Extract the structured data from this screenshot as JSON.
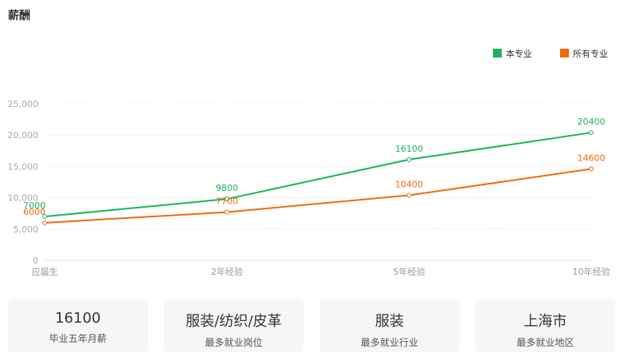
{
  "page_title": "薪酬",
  "chart_data": {
    "type": "line",
    "categories": [
      "应届生",
      "2年经验",
      "5年经验",
      "10年经验"
    ],
    "series": [
      {
        "name": "本专业",
        "values": [
          7000,
          9800,
          16100,
          20400
        ],
        "color": "#1bb35a"
      },
      {
        "name": "所有专业",
        "values": [
          6000,
          7700,
          10400,
          14600
        ],
        "color": "#f06a0e"
      }
    ],
    "ylim": [
      0,
      25000
    ],
    "yticks": [
      0,
      5000,
      10000,
      15000,
      20000,
      25000
    ],
    "ytick_labels": [
      "0",
      "5,000",
      "10,000",
      "15,000",
      "20,000",
      "25,000"
    ],
    "grid": true,
    "legend": "top-right",
    "xlabel": "",
    "ylabel": ""
  },
  "cards": [
    {
      "value": "16100",
      "label": "毕业五年月薪"
    },
    {
      "value": "服装/纺织/皮革",
      "label": "最多就业岗位"
    },
    {
      "value": "服装",
      "label": "最多就业行业"
    },
    {
      "value": "上海市",
      "label": "最多就业地区"
    }
  ]
}
